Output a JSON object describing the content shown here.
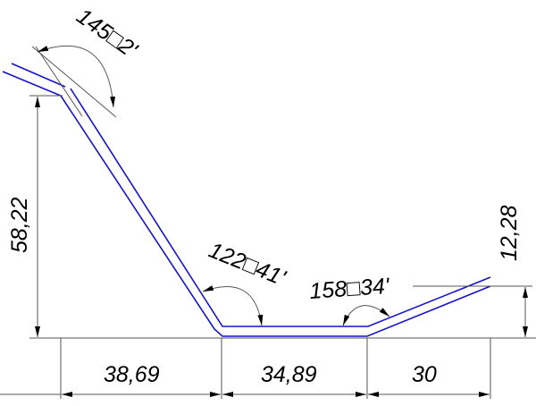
{
  "dimensions": {
    "height_left": "58,22",
    "height_right": "12,28",
    "width_left": "38,69",
    "width_middle": "34,89",
    "width_right": "30"
  },
  "angles": {
    "top": "145□2'",
    "bottom_left": "122□41'",
    "bottom_right": "158□34'"
  },
  "colors": {
    "profile": "#1414c8",
    "dimension": "#555555"
  }
}
